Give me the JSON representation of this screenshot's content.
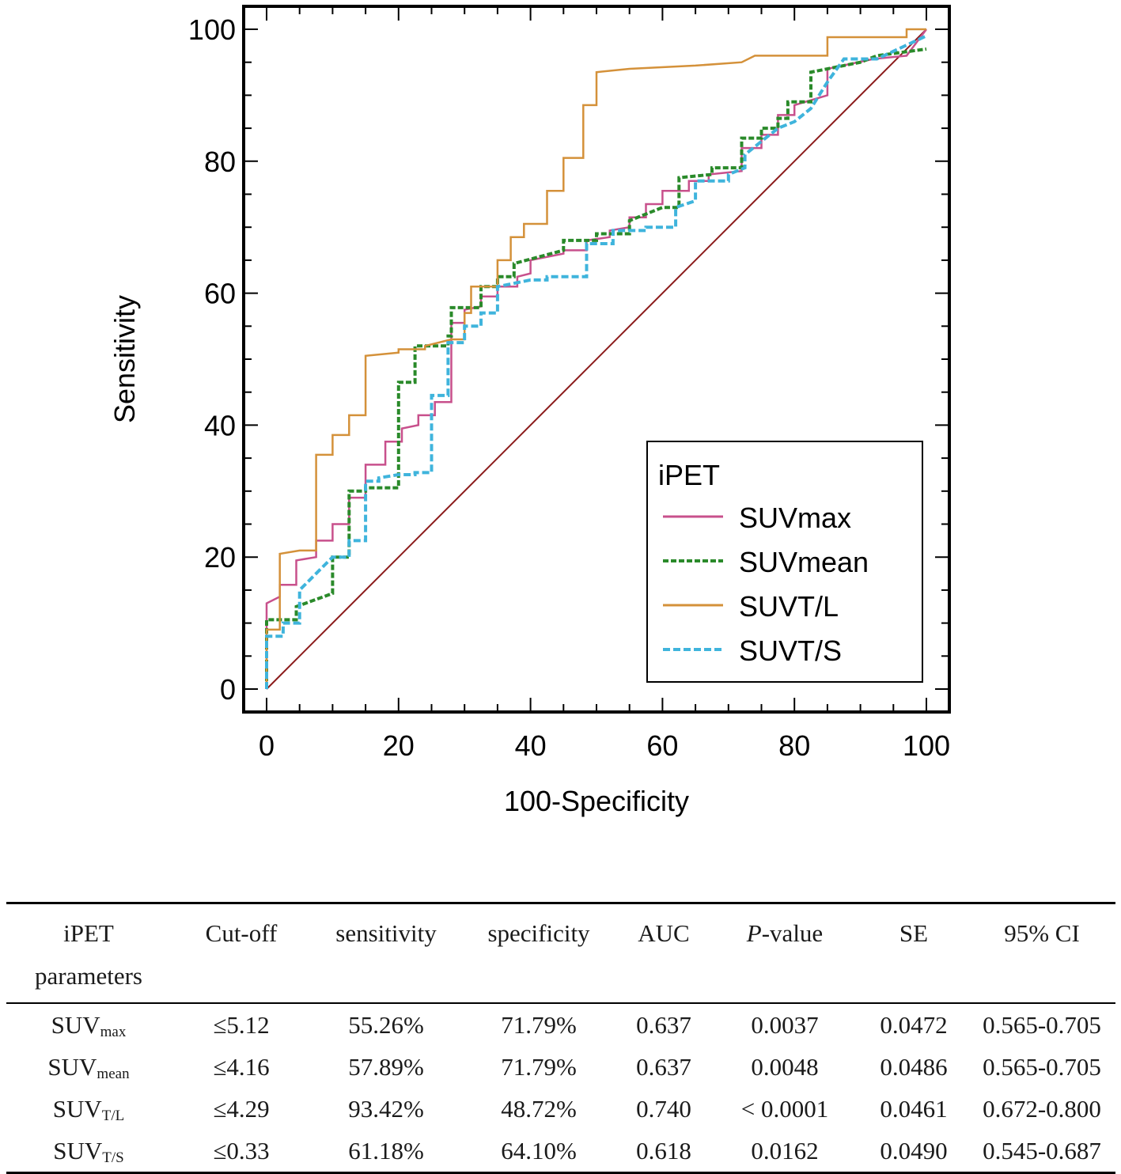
{
  "chart_data": {
    "type": "line",
    "xlabel": "100-Specificity",
    "ylabel": "Sensitivity",
    "xlim": [
      0,
      100
    ],
    "ylim": [
      0,
      100
    ],
    "x_ticks": [
      "0",
      "20",
      "40",
      "60",
      "80",
      "100"
    ],
    "y_ticks": [
      "0",
      "20",
      "40",
      "60",
      "80",
      "100"
    ],
    "legend_title": "iPET",
    "legend_position": "bottom-right",
    "reference_line": {
      "name": "diagonal",
      "color": "#8b1a1a",
      "points": [
        [
          0,
          0
        ],
        [
          100,
          100
        ]
      ]
    },
    "series": [
      {
        "name": "SUVmax",
        "color": "#c8508c",
        "style": "solid",
        "points": [
          [
            0,
            0
          ],
          [
            0,
            13
          ],
          [
            2,
            14
          ],
          [
            2,
            15.8
          ],
          [
            4.5,
            15.8
          ],
          [
            4.5,
            19.5
          ],
          [
            7.5,
            20
          ],
          [
            7.5,
            22.5
          ],
          [
            10,
            22.5
          ],
          [
            10,
            25
          ],
          [
            12.5,
            25
          ],
          [
            12.5,
            29
          ],
          [
            15,
            29
          ],
          [
            15,
            34
          ],
          [
            18,
            34
          ],
          [
            18,
            37.5
          ],
          [
            20.5,
            37.5
          ],
          [
            20.5,
            39.5
          ],
          [
            23,
            40
          ],
          [
            23,
            41.5
          ],
          [
            25.5,
            41.5
          ],
          [
            25.5,
            43.5
          ],
          [
            28,
            43.5
          ],
          [
            28,
            55.5
          ],
          [
            30,
            55.5
          ],
          [
            30,
            57.5
          ],
          [
            32.5,
            58
          ],
          [
            32.5,
            59.5
          ],
          [
            35,
            59.5
          ],
          [
            35,
            61
          ],
          [
            38,
            61
          ],
          [
            38,
            62.5
          ],
          [
            40,
            63
          ],
          [
            40,
            65
          ],
          [
            45,
            66
          ],
          [
            45,
            66.5
          ],
          [
            48.5,
            66.5
          ],
          [
            48.5,
            68
          ],
          [
            52,
            68.5
          ],
          [
            52,
            69.5
          ],
          [
            55,
            70
          ],
          [
            55,
            71.5
          ],
          [
            57.5,
            71.5
          ],
          [
            57.5,
            73.5
          ],
          [
            60,
            73.5
          ],
          [
            60,
            75.5
          ],
          [
            64,
            75.5
          ],
          [
            64,
            77
          ],
          [
            67,
            77
          ],
          [
            67,
            78
          ],
          [
            72,
            78.5
          ],
          [
            72,
            82
          ],
          [
            75,
            82
          ],
          [
            75,
            84
          ],
          [
            77.5,
            84
          ],
          [
            77.5,
            87
          ],
          [
            80,
            87
          ],
          [
            80,
            88.5
          ],
          [
            85,
            90
          ],
          [
            85,
            94
          ],
          [
            92,
            95.5
          ],
          [
            97,
            96
          ],
          [
            100,
            100
          ]
        ]
      },
      {
        "name": "SUVmean",
        "color": "#2a8a2a",
        "style": "dashed",
        "points": [
          [
            0,
            0
          ],
          [
            0,
            10.5
          ],
          [
            4.5,
            10.5
          ],
          [
            4.5,
            12.5
          ],
          [
            10,
            14.5
          ],
          [
            10,
            20
          ],
          [
            12.5,
            20
          ],
          [
            12.5,
            30
          ],
          [
            15,
            30
          ],
          [
            15,
            30.5
          ],
          [
            20,
            30.5
          ],
          [
            20,
            46.5
          ],
          [
            22.5,
            46.5
          ],
          [
            22.5,
            52
          ],
          [
            27.5,
            52
          ],
          [
            27.5,
            53.5
          ],
          [
            28,
            53.5
          ],
          [
            28,
            57.8
          ],
          [
            32.5,
            57.8
          ],
          [
            32.5,
            61
          ],
          [
            35,
            61
          ],
          [
            35,
            62.5
          ],
          [
            37.5,
            62.5
          ],
          [
            37.5,
            64.5
          ],
          [
            45,
            66.5
          ],
          [
            45,
            68
          ],
          [
            50,
            68
          ],
          [
            50,
            69
          ],
          [
            55,
            69
          ],
          [
            55,
            71
          ],
          [
            60,
            73
          ],
          [
            62.5,
            73
          ],
          [
            62.5,
            77.5
          ],
          [
            67.5,
            78
          ],
          [
            67.5,
            79
          ],
          [
            72,
            79
          ],
          [
            72,
            83.5
          ],
          [
            75,
            83.5
          ],
          [
            75,
            85
          ],
          [
            77.5,
            85
          ],
          [
            77.5,
            86.5
          ],
          [
            79,
            86.5
          ],
          [
            79,
            89
          ],
          [
            82.5,
            89
          ],
          [
            82.5,
            93.5
          ],
          [
            90,
            95
          ],
          [
            92.5,
            96
          ],
          [
            100,
            97
          ]
        ]
      },
      {
        "name": "SUVT/L",
        "color": "#d4913a",
        "style": "solid",
        "points": [
          [
            0,
            0
          ],
          [
            0,
            9
          ],
          [
            2,
            9
          ],
          [
            2,
            20.5
          ],
          [
            5,
            21
          ],
          [
            7.5,
            21
          ],
          [
            7.5,
            35.5
          ],
          [
            10,
            35.5
          ],
          [
            10,
            38.5
          ],
          [
            12.5,
            38.5
          ],
          [
            12.5,
            41.5
          ],
          [
            15,
            41.5
          ],
          [
            15,
            50.5
          ],
          [
            20,
            51
          ],
          [
            20,
            51.5
          ],
          [
            24,
            51.5
          ],
          [
            24,
            52
          ],
          [
            28,
            53
          ],
          [
            30,
            53
          ],
          [
            30,
            57
          ],
          [
            31,
            57
          ],
          [
            31,
            61
          ],
          [
            35,
            61
          ],
          [
            35,
            65
          ],
          [
            37,
            65
          ],
          [
            37,
            68.5
          ],
          [
            39,
            68.5
          ],
          [
            39,
            70.5
          ],
          [
            42.5,
            70.5
          ],
          [
            42.5,
            75.5
          ],
          [
            45,
            75.5
          ],
          [
            45,
            80.5
          ],
          [
            48,
            80.5
          ],
          [
            48,
            88.5
          ],
          [
            50,
            88.5
          ],
          [
            50,
            93.5
          ],
          [
            55,
            94
          ],
          [
            65,
            94.5
          ],
          [
            72,
            95
          ],
          [
            74,
            96
          ],
          [
            85,
            96
          ],
          [
            85,
            98.8
          ],
          [
            97,
            98.8
          ],
          [
            97,
            100
          ],
          [
            100,
            100
          ]
        ]
      },
      {
        "name": "SUVT/S",
        "color": "#3fb4dc",
        "style": "dashed",
        "points": [
          [
            0,
            0
          ],
          [
            0,
            8
          ],
          [
            2.5,
            8
          ],
          [
            2.5,
            10
          ],
          [
            5,
            10
          ],
          [
            5,
            15
          ],
          [
            7,
            17
          ],
          [
            9,
            19
          ],
          [
            10,
            20
          ],
          [
            12.5,
            20
          ],
          [
            12.5,
            22.5
          ],
          [
            15,
            22.5
          ],
          [
            15,
            31.5
          ],
          [
            17,
            31.5
          ],
          [
            17,
            32
          ],
          [
            20,
            32.5
          ],
          [
            22.5,
            32.5
          ],
          [
            22.5,
            32.8
          ],
          [
            25,
            32.8
          ],
          [
            25,
            44.5
          ],
          [
            27.5,
            44.5
          ],
          [
            27.5,
            52.5
          ],
          [
            30,
            52.5
          ],
          [
            30,
            55
          ],
          [
            32.5,
            55
          ],
          [
            32.5,
            57
          ],
          [
            35,
            57
          ],
          [
            35,
            61
          ],
          [
            40,
            62
          ],
          [
            42.5,
            62
          ],
          [
            42.5,
            62.5
          ],
          [
            48.5,
            62.5
          ],
          [
            48.5,
            67.5
          ],
          [
            52.5,
            67.5
          ],
          [
            52.5,
            69.5
          ],
          [
            57.5,
            69.5
          ],
          [
            57.5,
            70
          ],
          [
            62,
            70
          ],
          [
            62,
            73
          ],
          [
            65,
            74
          ],
          [
            65,
            77
          ],
          [
            70,
            77
          ],
          [
            70,
            78
          ],
          [
            72.5,
            79
          ],
          [
            72.5,
            81
          ],
          [
            75,
            83
          ],
          [
            77.5,
            85
          ],
          [
            80,
            86
          ],
          [
            82.5,
            88
          ],
          [
            85,
            92
          ],
          [
            87.5,
            95.5
          ],
          [
            92.5,
            95.5
          ],
          [
            100,
            99
          ]
        ]
      }
    ]
  },
  "table": {
    "headers": {
      "param_line1": "iPET",
      "param_line2": "parameters",
      "cutoff": "Cut-off",
      "sensitivity": "sensitivity",
      "specificity": "specificity",
      "auc": "AUC",
      "p_italic": "P",
      "p_rest": "-value",
      "se": "SE",
      "ci": "95% CI"
    },
    "rows": [
      {
        "param_base": "SUV",
        "param_sub": "max",
        "cutoff": "≤5.12",
        "sensitivity": "55.26%",
        "specificity": "71.79%",
        "auc": "0.637",
        "p_value": "0.0037",
        "se": "0.0472",
        "ci": "0.565-0.705"
      },
      {
        "param_base": "SUV",
        "param_sub": "mean",
        "cutoff": "≤4.16",
        "sensitivity": "57.89%",
        "specificity": "71.79%",
        "auc": "0.637",
        "p_value": "0.0048",
        "se": "0.0486",
        "ci": "0.565-0.705"
      },
      {
        "param_base": "SUV",
        "param_sub": "T/L",
        "cutoff": "≤4.29",
        "sensitivity": "93.42%",
        "specificity": "48.72%",
        "auc": "0.740",
        "p_value": "< 0.0001",
        "se": "0.0461",
        "ci": "0.672-0.800"
      },
      {
        "param_base": "SUV",
        "param_sub": "T/S",
        "cutoff": "≤0.33",
        "sensitivity": "61.18%",
        "specificity": "64.10%",
        "auc": "0.618",
        "p_value": "0.0162",
        "se": "0.0490",
        "ci": "0.545-0.687"
      }
    ]
  }
}
